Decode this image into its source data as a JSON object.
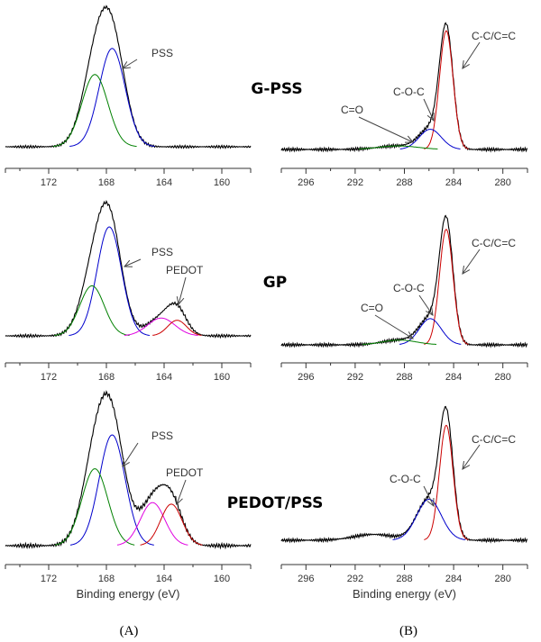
{
  "figure": {
    "panel_labels": [
      "(A)",
      "(B)"
    ],
    "sample_labels": [
      "G-PSS",
      "GP",
      "PEDOT/PSS"
    ]
  },
  "chart_data": [
    {
      "type": "line",
      "panel": "(A)",
      "sample": "G-PSS",
      "xlabel": "",
      "ylabel": "",
      "xlim": [
        175,
        158
      ],
      "x_ticks": [
        172,
        168,
        164,
        160
      ],
      "grid": false,
      "series": [
        {
          "color": "#000000",
          "peaks": [
            {
              "center": 167.6,
              "height": 1.0,
              "width": 0.9
            },
            {
              "center": 168.8,
              "height": 0.72,
              "width": 0.9
            }
          ]
        },
        {
          "name": "PSS",
          "color": "#0000cc",
          "peaks": [
            {
              "center": 167.6,
              "height": 0.98,
              "width": 0.9
            }
          ]
        },
        {
          "color": "#008000",
          "peaks": [
            {
              "center": 168.8,
              "height": 0.72,
              "width": 0.9
            }
          ]
        }
      ],
      "annotations": [
        {
          "text": "PSS",
          "x": 167.6
        }
      ]
    },
    {
      "type": "line",
      "panel": "(B)",
      "sample": "G-PSS",
      "xlabel": "",
      "ylabel": "",
      "xlim": [
        298,
        278
      ],
      "x_ticks": [
        296,
        292,
        288,
        284,
        280
      ],
      "grid": false,
      "series": [
        {
          "color": "#000000",
          "peaks": [
            {
              "center": 284.6,
              "height": 1.0,
              "width": 0.55
            },
            {
              "center": 285.9,
              "height": 0.17,
              "width": 0.9
            },
            {
              "center": 288.5,
              "height": 0.03,
              "width": 1.6
            }
          ]
        },
        {
          "name": "C-C/C=C",
          "color": "#cc0000",
          "peaks": [
            {
              "center": 284.6,
              "height": 1.0,
              "width": 0.55
            }
          ]
        },
        {
          "name": "C-O-C",
          "color": "#0000cc",
          "peaks": [
            {
              "center": 285.9,
              "height": 0.17,
              "width": 0.9
            }
          ]
        },
        {
          "name": "C=O",
          "color": "#008000",
          "peaks": [
            {
              "center": 288.5,
              "height": 0.03,
              "width": 1.6
            }
          ]
        }
      ],
      "annotations": [
        {
          "text": "C-C/C=C",
          "x": 284.6
        },
        {
          "text": "C-O-C",
          "x": 285.9
        },
        {
          "text": "C=O",
          "x": 288.5
        }
      ]
    },
    {
      "type": "line",
      "panel": "(A)",
      "sample": "GP",
      "xlabel": "",
      "ylabel": "",
      "xlim": [
        175,
        158
      ],
      "x_ticks": [
        172,
        168,
        164,
        160
      ],
      "grid": false,
      "series": [
        {
          "color": "#000000",
          "peaks": [
            {
              "center": 167.8,
              "height": 1.0,
              "width": 0.85
            },
            {
              "center": 169.0,
              "height": 0.45,
              "width": 0.85
            },
            {
              "center": 164.2,
              "height": 0.16,
              "width": 0.95
            },
            {
              "center": 163.1,
              "height": 0.2,
              "width": 0.65
            }
          ]
        },
        {
          "name": "PSS",
          "color": "#0000cc",
          "peaks": [
            {
              "center": 167.8,
              "height": 0.98,
              "width": 0.85
            }
          ]
        },
        {
          "color": "#008000",
          "peaks": [
            {
              "center": 169.0,
              "height": 0.45,
              "width": 0.85
            }
          ]
        },
        {
          "color": "#e000e0",
          "peaks": [
            {
              "center": 164.2,
              "height": 0.16,
              "width": 0.95
            }
          ]
        },
        {
          "name": "PEDOT",
          "color": "#cc0000",
          "peaks": [
            {
              "center": 163.1,
              "height": 0.14,
              "width": 0.65
            }
          ]
        }
      ],
      "annotations": [
        {
          "text": "PSS",
          "x": 167.8
        },
        {
          "text": "PEDOT",
          "x": 163.1
        }
      ]
    },
    {
      "type": "line",
      "panel": "(B)",
      "sample": "GP",
      "xlabel": "",
      "ylabel": "",
      "xlim": [
        298,
        278
      ],
      "x_ticks": [
        296,
        292,
        288,
        284,
        280
      ],
      "grid": false,
      "series": [
        {
          "color": "#000000",
          "peaks": [
            {
              "center": 284.6,
              "height": 1.0,
              "width": 0.55
            },
            {
              "center": 285.9,
              "height": 0.22,
              "width": 0.9
            },
            {
              "center": 288.4,
              "height": 0.04,
              "width": 1.4
            }
          ]
        },
        {
          "name": "C-C/C=C",
          "color": "#cc0000",
          "peaks": [
            {
              "center": 284.6,
              "height": 0.97,
              "width": 0.55
            }
          ]
        },
        {
          "name": "C-O-C",
          "color": "#0000cc",
          "peaks": [
            {
              "center": 285.9,
              "height": 0.22,
              "width": 0.9
            }
          ]
        },
        {
          "name": "C=O",
          "color": "#008000",
          "peaks": [
            {
              "center": 288.4,
              "height": 0.04,
              "width": 1.4
            }
          ]
        }
      ],
      "annotations": [
        {
          "text": "C-C/C=C",
          "x": 284.6
        },
        {
          "text": "C-O-C",
          "x": 285.9
        },
        {
          "text": "C=O",
          "x": 288.4
        }
      ]
    },
    {
      "type": "line",
      "panel": "(A)",
      "sample": "PEDOT/PSS",
      "xlabel": "Binding energy (eV)",
      "ylabel": "",
      "xlim": [
        175,
        158
      ],
      "x_ticks": [
        172,
        168,
        164,
        160
      ],
      "grid": false,
      "series": [
        {
          "color": "#000000",
          "peaks": [
            {
              "center": 167.6,
              "height": 0.72,
              "width": 0.9
            },
            {
              "center": 168.8,
              "height": 0.5,
              "width": 0.9
            },
            {
              "center": 164.8,
              "height": 0.28,
              "width": 0.85
            },
            {
              "center": 163.5,
              "height": 0.27,
              "width": 0.75
            }
          ]
        },
        {
          "name": "PSS",
          "color": "#0000cc",
          "peaks": [
            {
              "center": 167.6,
              "height": 0.72,
              "width": 0.9
            }
          ]
        },
        {
          "color": "#008000",
          "peaks": [
            {
              "center": 168.8,
              "height": 0.5,
              "width": 0.9
            }
          ]
        },
        {
          "color": "#e000e0",
          "peaks": [
            {
              "center": 164.8,
              "height": 0.28,
              "width": 0.85
            }
          ]
        },
        {
          "name": "PEDOT",
          "color": "#cc0000",
          "peaks": [
            {
              "center": 163.5,
              "height": 0.27,
              "width": 0.75
            }
          ]
        }
      ],
      "annotations": [
        {
          "text": "PSS",
          "x": 167.6
        },
        {
          "text": "PEDOT",
          "x": 163.5
        }
      ]
    },
    {
      "type": "line",
      "panel": "(B)",
      "sample": "PEDOT/PSS",
      "xlabel": "Binding energy (eV)",
      "ylabel": "",
      "xlim": [
        298,
        278
      ],
      "x_ticks": [
        296,
        292,
        288,
        284,
        280
      ],
      "grid": false,
      "series": [
        {
          "color": "#000000",
          "peaks": [
            {
              "center": 284.6,
              "height": 1.0,
              "width": 0.55
            },
            {
              "center": 286.0,
              "height": 0.35,
              "width": 1.0
            },
            {
              "center": 290.5,
              "height": 0.05,
              "width": 1.6
            }
          ]
        },
        {
          "name": "C-C/C=C",
          "color": "#cc0000",
          "peaks": [
            {
              "center": 284.6,
              "height": 0.98,
              "width": 0.55
            }
          ]
        },
        {
          "name": "C-O-C",
          "color": "#0000cc",
          "peaks": [
            {
              "center": 286.0,
              "height": 0.35,
              "width": 1.0
            }
          ]
        }
      ],
      "annotations": [
        {
          "text": "C-C/C=C",
          "x": 284.6
        },
        {
          "text": "C-O-C",
          "x": 286.0
        }
      ]
    }
  ]
}
